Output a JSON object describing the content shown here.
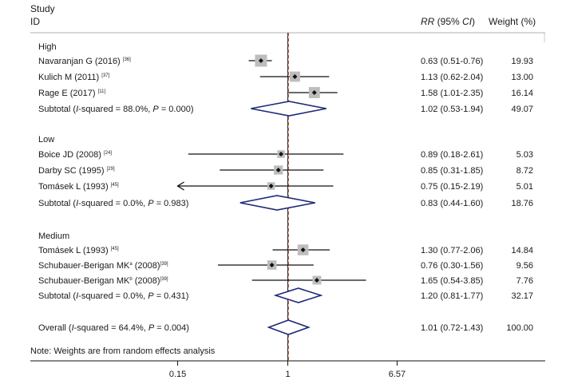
{
  "chart_data": {
    "type": "forest",
    "header": {
      "study_label": "Study",
      "id_label": "ID",
      "rr_label_italic": "RR",
      "rr_label_rest": " (95% ",
      "rr_label_ci": "CI",
      "rr_label_close": ")",
      "weight_label": "Weight (%)"
    },
    "x_axis": {
      "scale": "log",
      "range": [
        0.11,
        9.6
      ],
      "ticks": [
        {
          "value": 0.15,
          "label": "0.15"
        },
        {
          "value": 1,
          "label": "1"
        },
        {
          "value": 6.57,
          "label": "6.57"
        }
      ],
      "null_line": 1,
      "overall_line": 1.01
    },
    "groups": [
      {
        "name": "High",
        "studies": [
          {
            "author": "Navaranjan G (2016)",
            "ref": "[36]",
            "rr": 0.63,
            "lo": 0.51,
            "hi": 0.76,
            "ci_text": "0.63 (0.51-0.76)",
            "weight": "19.93",
            "w": 19.93
          },
          {
            "author": "Kulich M (2011)",
            "ref": "[37]",
            "rr": 1.13,
            "lo": 0.62,
            "hi": 2.04,
            "ci_text": "1.13 (0.62-2.04)",
            "weight": "13.00",
            "w": 13.0
          },
          {
            "author": "Rage E (2017)",
            "ref": "[11]",
            "rr": 1.58,
            "lo": 1.01,
            "hi": 2.35,
            "ci_text": "1.58 (1.01-2.35)",
            "weight": "16.14",
            "w": 16.14
          }
        ],
        "subtotal": {
          "label_pre": "Subtotal (",
          "label_i": "I",
          "label_mid": "-squared = 88.0%, ",
          "label_p": "P",
          "label_post": " = 0.000)",
          "rr": 1.02,
          "lo": 0.53,
          "hi": 1.94,
          "ci_text": "1.02 (0.53-1.94)",
          "weight": "49.07"
        }
      },
      {
        "name": "Low",
        "studies": [
          {
            "author": "Boice JD (2008)",
            "ref": "[24]",
            "rr": 0.89,
            "lo": 0.18,
            "hi": 2.61,
            "ci_text": "0.89 (0.18-2.61)",
            "weight": "5.03",
            "w": 5.03
          },
          {
            "author": "Darby SC (1995)",
            "ref": "[29]",
            "rr": 0.85,
            "lo": 0.31,
            "hi": 1.85,
            "ci_text": "0.85 (0.31-1.85)",
            "weight": "8.72",
            "w": 8.72
          },
          {
            "author": "Tomásek L (1993)",
            "ref": "[45]",
            "rr": 0.75,
            "lo": 0.15,
            "hi": 2.19,
            "ci_text": "0.75 (0.15-2.19)",
            "weight": "5.01",
            "w": 5.01,
            "arrow_left": true
          }
        ],
        "subtotal": {
          "label_pre": "Subtotal (",
          "label_i": "I",
          "label_mid": "-squared = 0.0%, ",
          "label_p": "P",
          "label_post": " = 0.983)",
          "rr": 0.83,
          "lo": 0.44,
          "hi": 1.6,
          "ci_text": "0.83 (0.44-1.60)",
          "weight": "18.76"
        }
      },
      {
        "name": "Medium",
        "studies": [
          {
            "author": "Tomásek L (1993)",
            "ref": "[45]",
            "rr": 1.3,
            "lo": 0.77,
            "hi": 2.06,
            "ci_text": "1.30 (0.77-2.06)",
            "weight": "14.84",
            "w": 14.84
          },
          {
            "author": "Schubauer-Berigan MK",
            "sup_a": "a",
            "ref_pre": " (2008)",
            "ref": "[39]",
            "rr": 0.76,
            "lo": 0.3,
            "hi": 1.56,
            "ci_text": "0.76 (0.30-1.56)",
            "weight": "9.56",
            "w": 9.56
          },
          {
            "author": "Schubauer-Berigan MK",
            "sup_a": "b",
            "ref_pre": " (2008)",
            "ref": "[39]",
            "rr": 1.65,
            "lo": 0.54,
            "hi": 3.85,
            "ci_text": "1.65 (0.54-3.85)",
            "weight": "7.76",
            "w": 7.76
          }
        ],
        "subtotal": {
          "label_pre": "Subtotal (",
          "label_i": "I",
          "label_mid": "-squared = 0.0%, ",
          "label_p": "P",
          "label_post": " = 0.431)",
          "rr": 1.2,
          "lo": 0.81,
          "hi": 1.77,
          "ci_text": "1.20 (0.81-1.77)",
          "weight": "32.17"
        }
      }
    ],
    "overall": {
      "label_pre": "Overall (",
      "label_i": "I",
      "label_mid": "-squared = 64.4%, ",
      "label_p": "P",
      "label_post": " = 0.004)",
      "rr": 1.01,
      "lo": 0.72,
      "hi": 1.43,
      "ci_text": "1.01 (0.72-1.43)",
      "weight": "100.00"
    },
    "note": "Note: Weights are from random effects analysis",
    "colors": {
      "diamond": "#1f2a7a",
      "null_line": "#222222",
      "overall_line": "#b5472d",
      "box": "#bdbdbd",
      "line": "#111111",
      "divider": "#999999"
    }
  }
}
